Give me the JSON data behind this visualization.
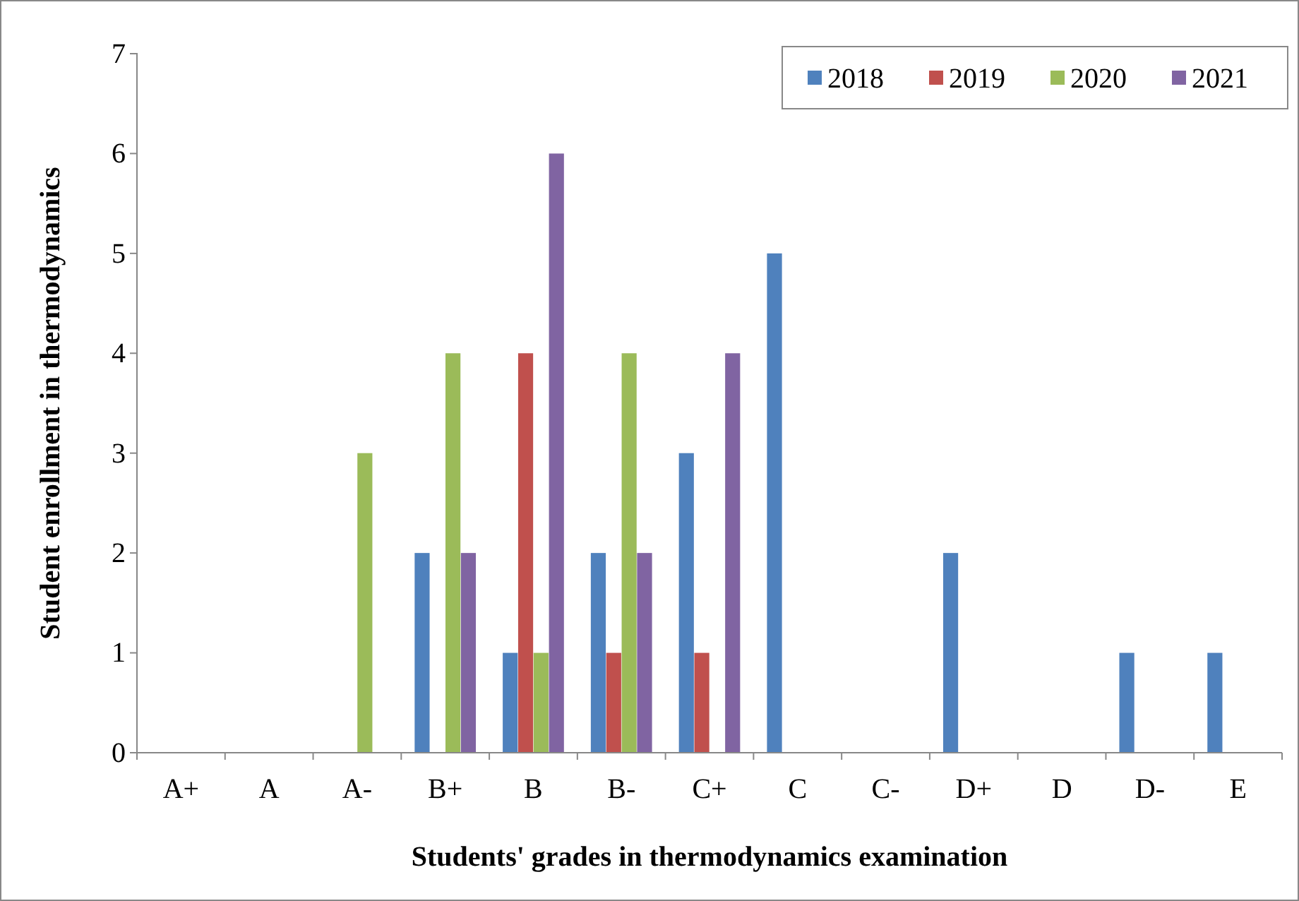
{
  "chart_data": {
    "type": "bar",
    "xlabel": "Students' grades in thermodynamics examination",
    "ylabel": "Student enrollment in thermodynamics",
    "categories": [
      "A+",
      "A",
      "A-",
      "B+",
      "B",
      "B-",
      "C+",
      "C",
      "C-",
      "D+",
      "D",
      "D-",
      "E"
    ],
    "series": [
      {
        "name": "2018",
        "color": "#4f81bd",
        "values": [
          0,
          0,
          0,
          2,
          1,
          2,
          3,
          5,
          0,
          2,
          0,
          1,
          1
        ]
      },
      {
        "name": "2019",
        "color": "#c0504d",
        "values": [
          0,
          0,
          0,
          0,
          4,
          1,
          1,
          0,
          0,
          0,
          0,
          0,
          0
        ]
      },
      {
        "name": "2020",
        "color": "#9bbb59",
        "values": [
          0,
          0,
          3,
          4,
          1,
          4,
          0,
          0,
          0,
          0,
          0,
          0,
          0
        ]
      },
      {
        "name": "2021",
        "color": "#8064a2",
        "values": [
          0,
          0,
          0,
          2,
          6,
          2,
          4,
          0,
          0,
          0,
          0,
          0,
          0
        ]
      }
    ],
    "ylim": [
      0,
      7
    ],
    "yticks": [
      0,
      1,
      2,
      3,
      4,
      5,
      6,
      7
    ],
    "legend": "top right"
  }
}
